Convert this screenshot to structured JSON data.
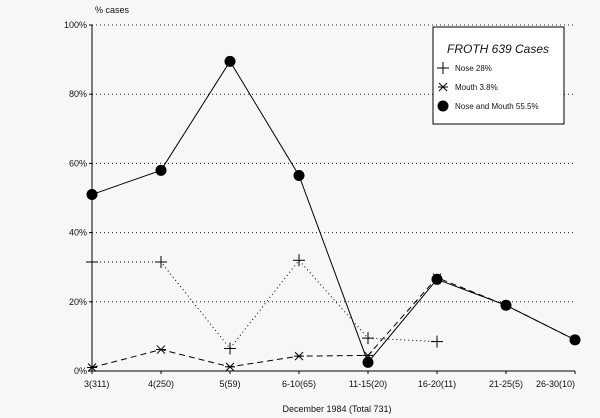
{
  "chart_data": {
    "type": "line",
    "ylabel": "% cases",
    "xlabel": "December 1984 (Total 731)",
    "categories": [
      "3(311)",
      "4(250)",
      "5(59)",
      "6-10(65)",
      "11-15(20)",
      "16-20(11)",
      "21-25(5)",
      "26-30(10)"
    ],
    "y_ticks": [
      "0%",
      "20%",
      "40%",
      "60%",
      "80%",
      "100%"
    ],
    "ylim": [
      0,
      100
    ],
    "grid": "horizontal dotted",
    "legend": {
      "title": "FROTH 639 Cases",
      "placement": "top-right"
    },
    "series": [
      {
        "name": "Nose 28%",
        "marker": "plus",
        "line": "dotted",
        "values": [
          31.5,
          31.5,
          6.5,
          32,
          9.5,
          8.5,
          null,
          null
        ]
      },
      {
        "name": "Mouth 3.8%",
        "marker": "asterisk",
        "line": "dashed",
        "values": [
          1,
          6.2,
          1.2,
          4.3,
          4.5,
          27,
          19,
          9
        ]
      },
      {
        "name": "Nose and Mouth 55.5%",
        "marker": "filled-circle",
        "line": "solid",
        "values": [
          51,
          58,
          89.5,
          56.5,
          2.5,
          26.5,
          19,
          9
        ]
      }
    ]
  }
}
